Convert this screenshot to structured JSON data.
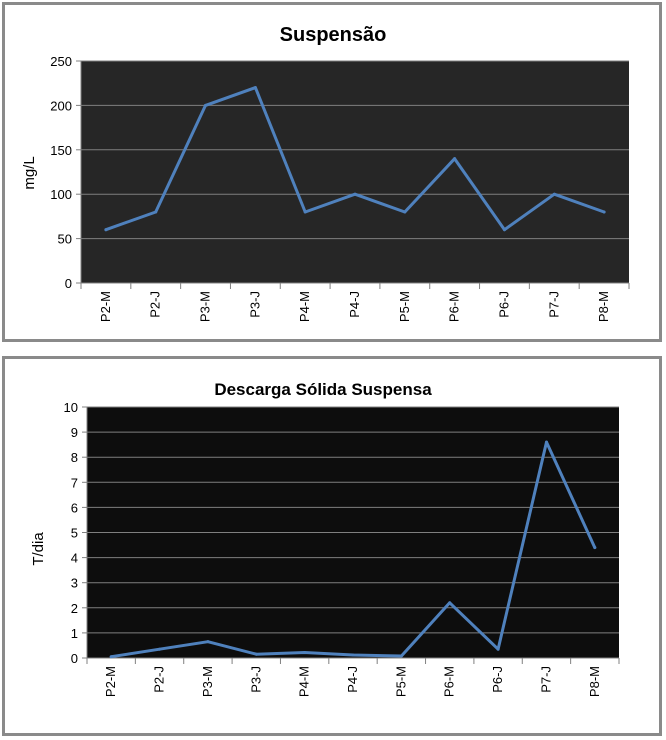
{
  "chart_data": [
    {
      "type": "line",
      "title": "Suspensão",
      "xlabel": "",
      "ylabel": "mg/L",
      "ylim": [
        0,
        250
      ],
      "yticks": [
        0,
        50,
        100,
        150,
        200,
        250
      ],
      "grid": true,
      "categories": [
        "P2-M",
        "P2-J",
        "P3-M",
        "P3-J",
        "P4-M",
        "P4-J",
        "P5-M",
        "P6-M",
        "P6-J",
        "P7-J",
        "P8-M"
      ],
      "series": [
        {
          "values": [
            60,
            80,
            200,
            220,
            80,
            100,
            80,
            140,
            60,
            100,
            80
          ]
        }
      ],
      "colors": {
        "plot_bg": "#262626",
        "line": "#4f81bd",
        "grid": "#7f7f7f"
      }
    },
    {
      "type": "line",
      "title": "Descarga Sólida Suspensa",
      "xlabel": "",
      "ylabel": "T/dia",
      "ylim": [
        0,
        10
      ],
      "yticks": [
        0,
        1,
        2,
        3,
        4,
        5,
        6,
        7,
        8,
        9,
        10
      ],
      "grid": true,
      "categories": [
        "P2-M",
        "P2-J",
        "P3-M",
        "P3-J",
        "P4-M",
        "P4-J",
        "P5-M",
        "P6-M",
        "P6-J",
        "P7-J",
        "P8-M"
      ],
      "series": [
        {
          "values": [
            0.05,
            0.35,
            0.65,
            0.15,
            0.22,
            0.12,
            0.08,
            2.2,
            0.35,
            8.6,
            4.4
          ]
        }
      ],
      "colors": {
        "plot_bg": "#0d0d0d",
        "line": "#4f81bd",
        "grid": "#7f7f7f"
      }
    }
  ]
}
